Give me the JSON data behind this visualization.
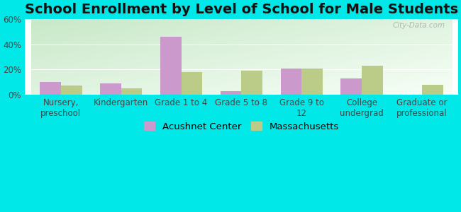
{
  "title": "School Enrollment by Level of School for Male Students",
  "categories": [
    "Nursery,\npreschool",
    "Kindergarten",
    "Grade 1 to 4",
    "Grade 5 to 8",
    "Grade 9 to\n12",
    "College\nundergrad",
    "Graduate or\nprofessional"
  ],
  "acushnet_values": [
    10,
    9,
    46,
    3,
    21,
    13,
    0
  ],
  "massachusetts_values": [
    7,
    5,
    18,
    19,
    21,
    23,
    8
  ],
  "acushnet_color": "#cc99cc",
  "massachusetts_color": "#bbcc88",
  "background_color": "#00e8e8",
  "gradient_top_left": "#c8e8c8",
  "gradient_bottom_right": "#f8fff8",
  "ylim": [
    0,
    60
  ],
  "yticks": [
    0,
    20,
    40,
    60
  ],
  "ytick_labels": [
    "0%",
    "20%",
    "40%",
    "60%"
  ],
  "legend_labels": [
    "Acushnet Center",
    "Massachusetts"
  ],
  "title_fontsize": 14,
  "tick_fontsize": 8.5,
  "legend_fontsize": 9.5,
  "watermark": "City-Data.com"
}
